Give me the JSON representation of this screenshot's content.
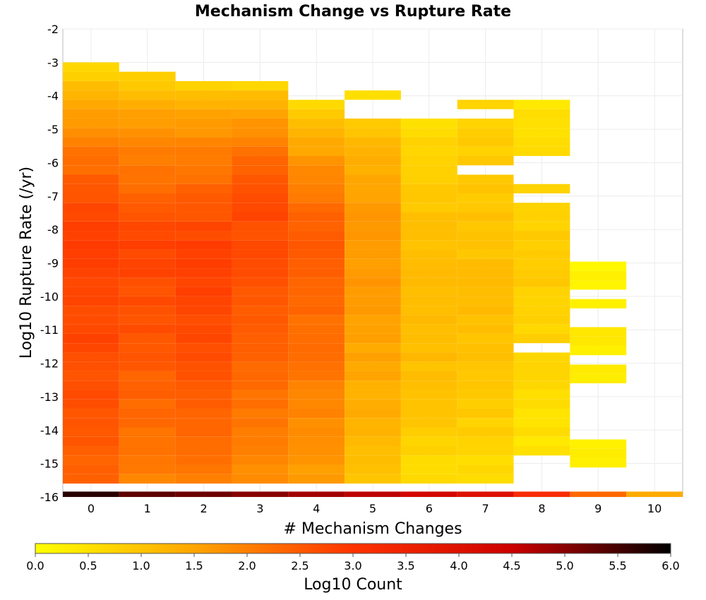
{
  "chart_data": {
    "type": "heatmap",
    "title": "Mechanism Change vs Rupture Rate",
    "xlabel": "# Mechanism Changes",
    "ylabel": "Log10 Rupture Rate (/yr)",
    "colorbar_label": "Log10 Count",
    "xlim": [
      -0.5,
      10.5
    ],
    "ylim": [
      -16,
      -2
    ],
    "x_ticks": [
      "0",
      "1",
      "2",
      "3",
      "4",
      "5",
      "6",
      "7",
      "8",
      "9",
      "10"
    ],
    "y_ticks": [
      "-2",
      "-3",
      "-4",
      "-5",
      "-6",
      "-7",
      "-8",
      "-9",
      "-10",
      "-11",
      "-12",
      "-13",
      "-14",
      "-15",
      "-16"
    ],
    "colorbar_ticks": [
      "0.0",
      "0.5",
      "1.0",
      "1.5",
      "2.0",
      "2.5",
      "3.0",
      "3.5",
      "4.0",
      "4.5",
      "5.0",
      "5.5",
      "6.0"
    ],
    "color_range": [
      0.0,
      6.0
    ],
    "colorscale": [
      "#ffff00",
      "#ffa500",
      "#ff3300",
      "#cc0000",
      "#000000"
    ],
    "x_bin_width": 1,
    "y_bin_height": 0.28,
    "columns": [
      {
        "x": 0,
        "top": -3.0,
        "bottom": -16.0,
        "v_top": 0.2,
        "v_peak": 2.85,
        "peak_y": -8.0,
        "v_bottom": 2.3
      },
      {
        "x": 1,
        "top": -3.28,
        "bottom": -16.0,
        "v_top": 0.4,
        "v_peak": 2.75,
        "peak_y": -8.3,
        "v_bottom": 1.9
      },
      {
        "x": 2,
        "top": -3.56,
        "bottom": -16.0,
        "v_top": 0.5,
        "v_peak": 2.85,
        "peak_y": -8.6,
        "v_bottom": 2.0
      },
      {
        "x": 3,
        "top": -3.56,
        "bottom": -16.0,
        "v_top": 0.3,
        "v_peak": 2.7,
        "peak_y": -7.0,
        "v_bottom": 1.7
      },
      {
        "x": 4,
        "top": -4.12,
        "bottom": -16.0,
        "v_top": 0.2,
        "v_peak": 2.45,
        "peak_y": -8.0,
        "v_bottom": 1.5
      },
      {
        "x": 5,
        "top": -3.84,
        "bottom": -16.0,
        "v_top": 0.3,
        "v_peak": 1.7,
        "peak_y": -8.0,
        "v_bottom": 1.0,
        "gaps": [
          [
            -4.12,
            -4.68
          ]
        ]
      },
      {
        "x": 6,
        "top": -4.68,
        "bottom": -16.0,
        "v_top": 0.4,
        "v_peak": 1.2,
        "peak_y": -10.0,
        "v_bottom": 0.5
      },
      {
        "x": 7,
        "top": -4.12,
        "bottom": -16.0,
        "v_top": 0.6,
        "v_peak": 1.1,
        "peak_y": -10.0,
        "v_bottom": 0.5,
        "gaps": [
          [
            -4.4,
            -4.68
          ],
          [
            -6.08,
            -6.36
          ]
        ]
      },
      {
        "x": 8,
        "top": -4.12,
        "bottom": -16.0,
        "v_top": 0.3,
        "v_peak": 0.85,
        "peak_y": -8.5,
        "v_bottom": 0.3,
        "gaps": [
          [
            -5.8,
            -6.64
          ],
          [
            -6.92,
            -7.2
          ],
          [
            -11.36,
            -11.64
          ],
          [
            -14.72,
            -15.84
          ]
        ]
      },
      {
        "x": 9,
        "top": -8.96,
        "bottom": -16.0,
        "v_top": 0.15,
        "v_peak": 0.3,
        "peak_y": -11.0,
        "v_bottom": 0.15,
        "gaps": [
          [
            -9.8,
            -10.08
          ],
          [
            -10.36,
            -10.92
          ],
          [
            -11.76,
            -12.04
          ],
          [
            -12.6,
            -14.16
          ],
          [
            -15.0,
            -15.84
          ]
        ]
      },
      {
        "x": 10,
        "top": -15.84,
        "bottom": -16.0,
        "v_top": 1.5,
        "v_peak": 1.5,
        "peak_y": -15.9,
        "v_bottom": 1.5
      }
    ],
    "bottom_row": {
      "y": -16.0,
      "values": [
        5.7,
        5.3,
        5.2,
        5.0,
        4.8,
        4.6,
        4.3,
        4.0,
        3.2,
        2.3,
        1.4
      ]
    },
    "grid": true
  }
}
